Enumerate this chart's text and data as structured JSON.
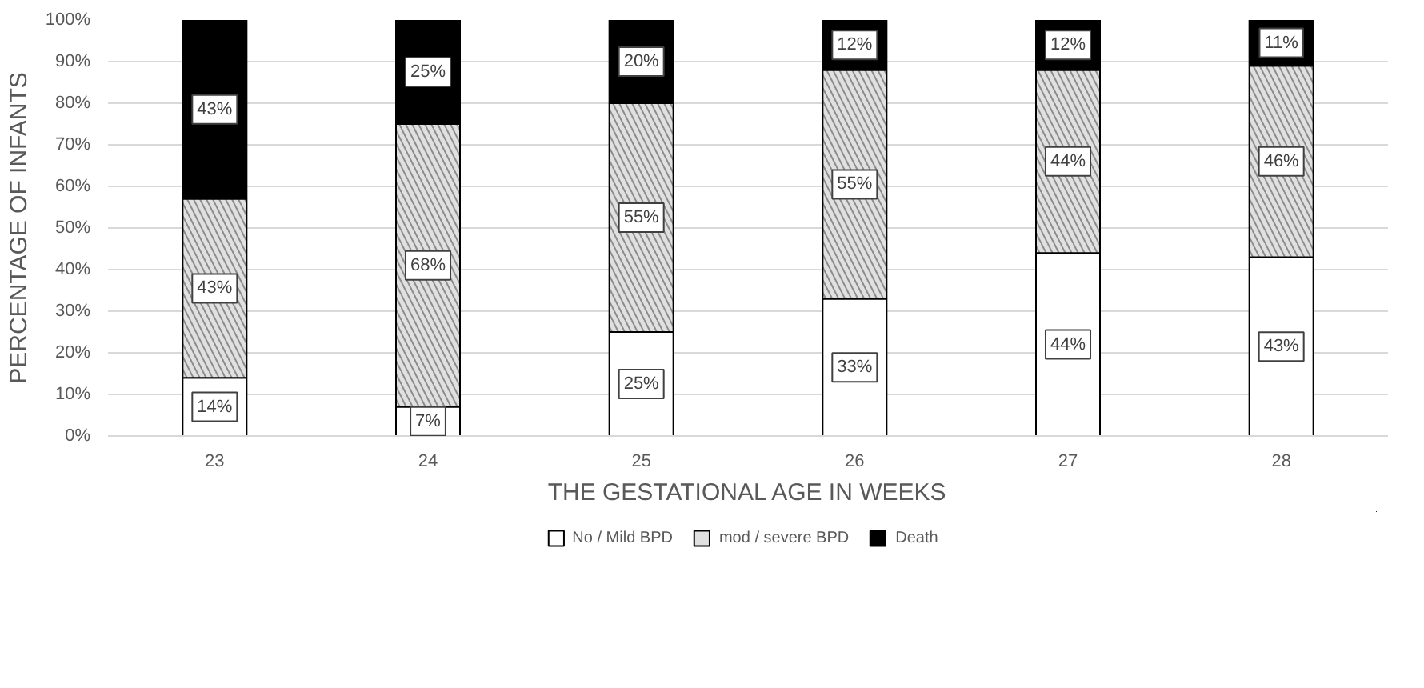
{
  "chart_data": {
    "type": "bar",
    "stacked": true,
    "xlabel": "THE GESTATIONAL AGE IN WEEKS",
    "ylabel": "PERCENTAGE OF INFANTS",
    "categories": [
      "23",
      "24",
      "25",
      "26",
      "27",
      "28"
    ],
    "series": [
      {
        "name": "No / Mild BPD",
        "color": "#ffffff",
        "values": [
          14,
          7,
          25,
          33,
          44,
          43
        ],
        "value_labels": [
          "14%",
          "7%",
          "25%",
          "33%",
          "44%",
          "43%"
        ]
      },
      {
        "name": "mod / severe BPD",
        "color": "#e0e0e0",
        "values": [
          43,
          68,
          55,
          55,
          44,
          46
        ],
        "value_labels": [
          "43%",
          "68%",
          "55%",
          "55%",
          "44%",
          "46%"
        ]
      },
      {
        "name": "Death",
        "color": "#000000",
        "values": [
          43,
          25,
          20,
          12,
          12,
          11
        ],
        "value_labels": [
          "43%",
          "25%",
          "20%",
          "12%",
          "12%",
          "11%"
        ]
      }
    ],
    "ylim": [
      0,
      100
    ],
    "yticks": [
      {
        "value": 0,
        "label": "0%"
      },
      {
        "value": 10,
        "label": "10%"
      },
      {
        "value": 20,
        "label": "20%"
      },
      {
        "value": 30,
        "label": "30%"
      },
      {
        "value": 40,
        "label": "40%"
      },
      {
        "value": 50,
        "label": "50%"
      },
      {
        "value": 60,
        "label": "60%"
      },
      {
        "value": 70,
        "label": "70%"
      },
      {
        "value": 80,
        "label": "80%"
      },
      {
        "value": 90,
        "label": "90%"
      },
      {
        "value": 100,
        "label": "100%"
      }
    ],
    "grid": "y",
    "legend": "bottom"
  }
}
